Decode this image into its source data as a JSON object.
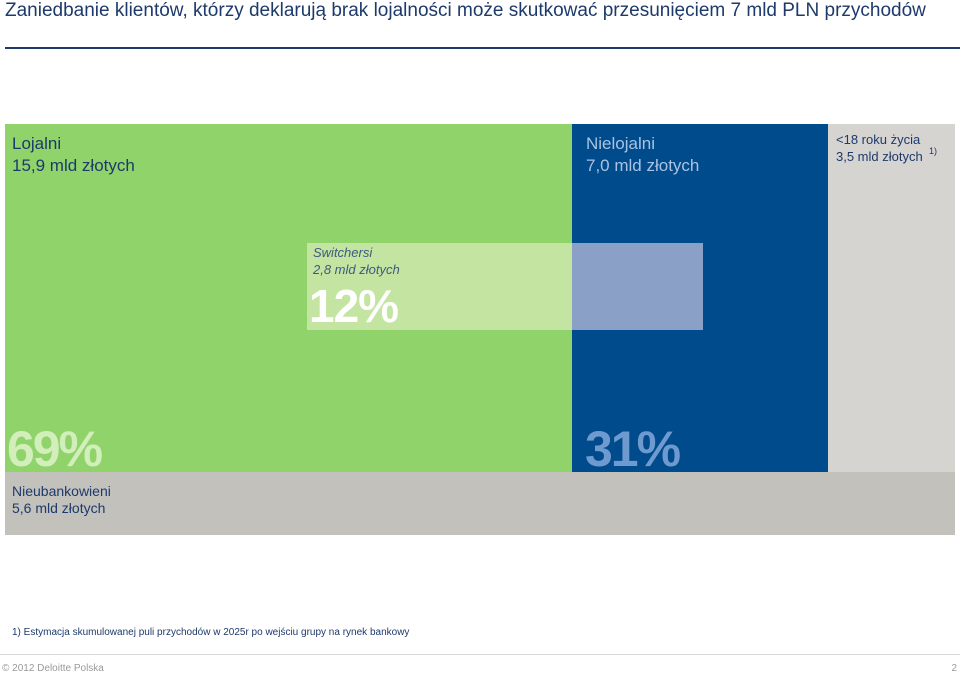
{
  "title": "Zaniedbanie klientów, którzy deklarują brak lojalności może skutkować przesunięciem 7 mld PLN przychodów",
  "colors": {
    "loyal": "#8fd36a",
    "nonloyal": "#004b8c",
    "under18": "#d5d4d0",
    "unbanked": "#c2c1bc",
    "switchers_light": "#c4e4a1",
    "switchers_blue": "#8ba0c6",
    "title": "#1d3a6b"
  },
  "segments": {
    "loyal": {
      "name": "Lojalni",
      "value": "15,9 mld złotych",
      "percent": "69%"
    },
    "nonloyal": {
      "name": "Nielojalni",
      "value": "7,0 mld złotych",
      "percent": "31%"
    },
    "under18": {
      "name": "<18 roku życia",
      "value": "3,5 mld złotych",
      "footnote_ref": "1)"
    },
    "switchers": {
      "name": "Switchersi",
      "value": "2,8 mld złotych",
      "percent": "12%"
    },
    "unbanked": {
      "name": "Nieubankowieni",
      "value": "5,6 mld złotych"
    }
  },
  "footnote": "1) Estymacja skumulowanej puli przychodów w 2025r po wejściu grupy na rynek bankowy",
  "footer": {
    "copyright": "© 2012 Deloitte Polska",
    "page_number": "2"
  }
}
